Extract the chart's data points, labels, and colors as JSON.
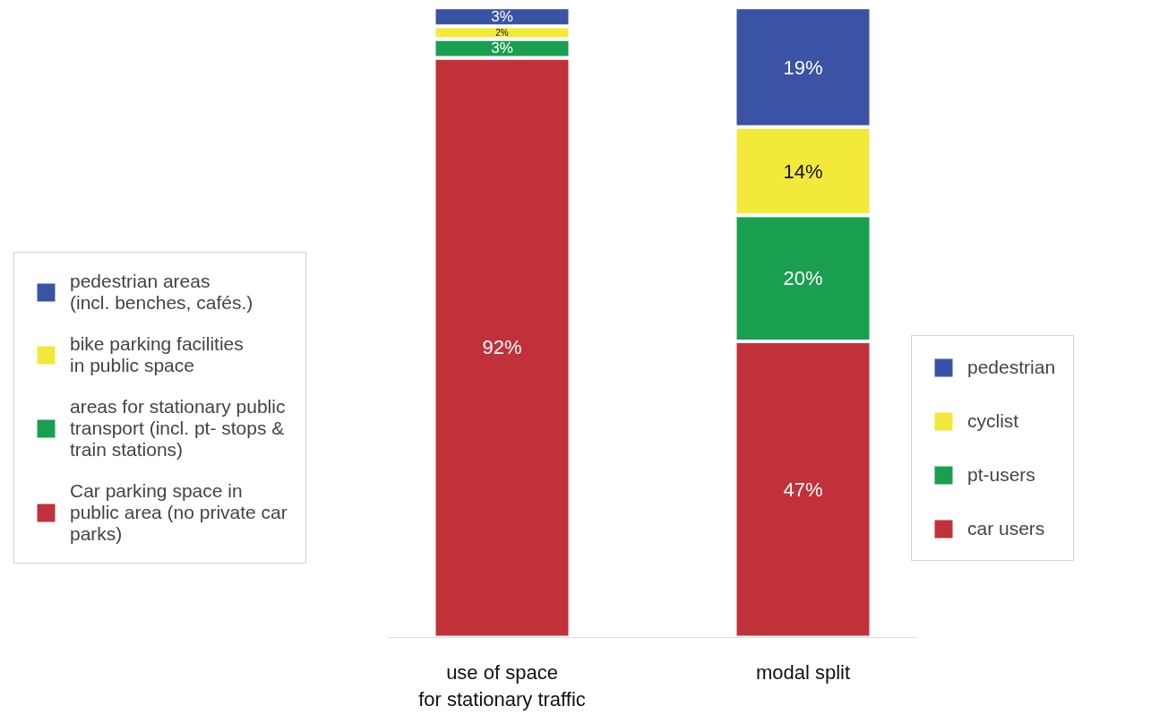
{
  "chart_data": {
    "type": "bar",
    "stacked": true,
    "legend": "left",
    "grid": false,
    "tick_labels": "x",
    "categories": [
      "use of space\nfor stationary traffic",
      "modal split"
    ],
    "series": [
      {
        "name": "Car parking space in\npublic area (no private car\nparks)",
        "color": "#c1313a",
        "values": [
          92,
          null
        ],
        "value_labels": [
          "92%",
          null
        ]
      },
      {
        "name": "areas for stationary public\ntransport (incl. pt- stops &\ntrain stations)",
        "color": "#1a9e50",
        "values": [
          3,
          null
        ],
        "value_labels": [
          "3%",
          null
        ]
      },
      {
        "name": "bike parking facilities\nin public space",
        "color": "#f2e93a",
        "values": [
          2,
          null
        ],
        "value_labels": [
          "2%",
          null
        ]
      },
      {
        "name": "pedestrian areas\n(incl. benches, cafés.)",
        "color": "#3a53a4",
        "values": [
          3,
          null
        ],
        "value_labels": [
          "3%",
          null
        ]
      },
      {
        "name": "car users",
        "color": "#c1313a",
        "values": [
          null,
          47
        ],
        "value_labels": [
          null,
          "47%"
        ]
      },
      {
        "name": "pt-users",
        "color": "#1a9e50",
        "values": [
          null,
          20
        ],
        "value_labels": [
          null,
          "20%"
        ]
      },
      {
        "name": "cyclist",
        "color": "#f2e93a",
        "values": [
          null,
          14
        ],
        "value_labels": [
          null,
          "14%"
        ]
      },
      {
        "name": "pedestrian",
        "color": "#3a53a4",
        "values": [
          null,
          19
        ],
        "value_labels": [
          null,
          "19%"
        ]
      }
    ]
  }
}
